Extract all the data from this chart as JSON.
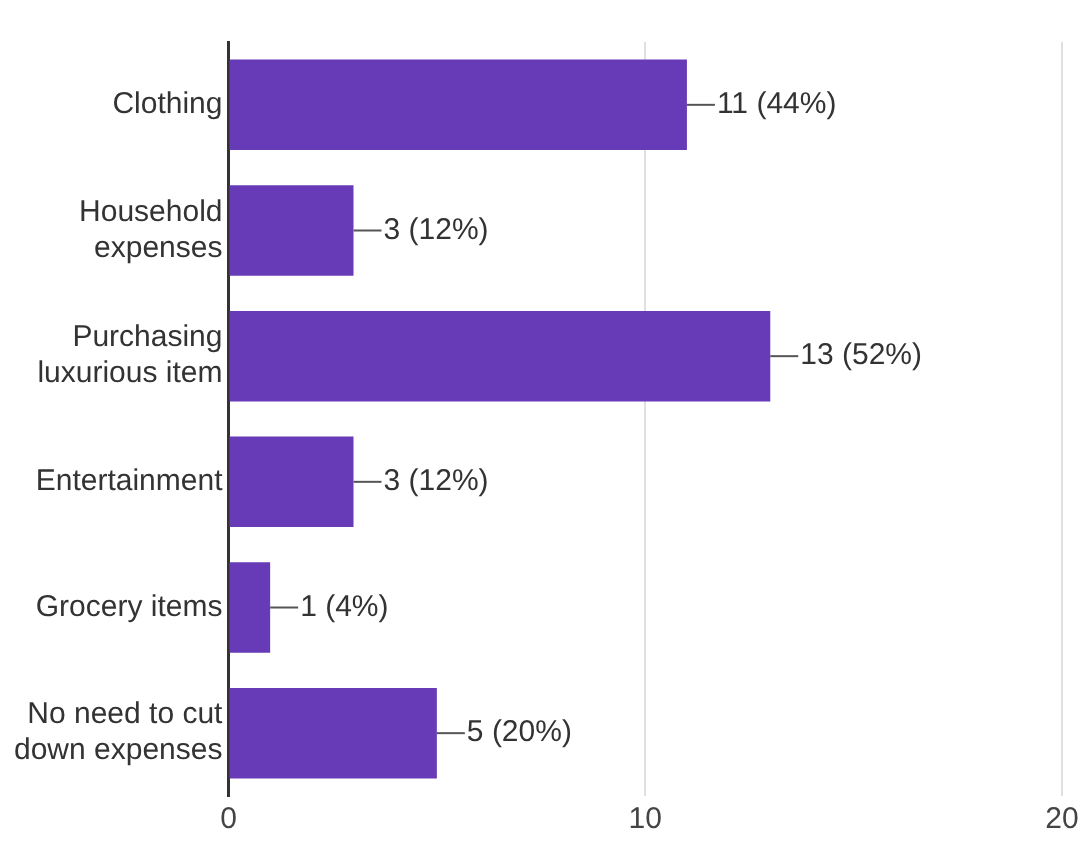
{
  "chart_data": {
    "type": "bar",
    "orientation": "horizontal",
    "categories": [
      "Clothing",
      "Household expenses",
      "Purchasing luxurious item",
      "Entertainment",
      "Grocery items",
      "No need to cut down expenses"
    ],
    "values": [
      11,
      3,
      13,
      3,
      1,
      5
    ],
    "value_labels": [
      "11 (44%)",
      "3 (12%)",
      "13 (52%)",
      "3 (12%)",
      "1 (4%)",
      "5 (20%)"
    ],
    "color": "#673ab7",
    "xlim": [
      0,
      20
    ],
    "xticks": [
      0,
      10,
      20
    ],
    "grid": "x",
    "legend": false
  }
}
